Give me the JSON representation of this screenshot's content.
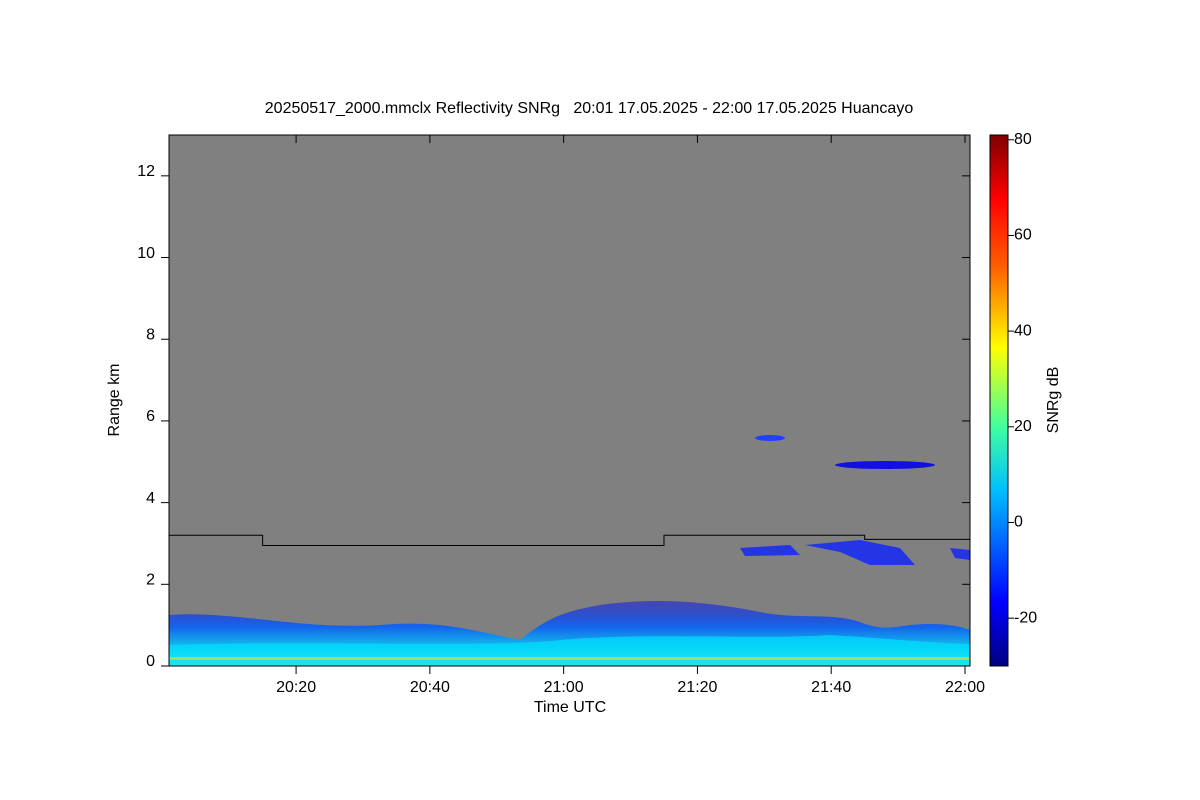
{
  "chart_data": {
    "type": "line",
    "title": "20250517_2000.mmclx Reflectivity SNRg   20:01 17.05.2025 - 22:00 17.05.2025 Huancayo",
    "x_label": "Time UTC",
    "y_label": "Range km",
    "colorbar_label": "SNRg dB",
    "x": [
      1201,
      1215,
      1215,
      1275,
      1275,
      1305,
      1305,
      1320.75
    ],
    "series": [
      {
        "color": "#000000",
        "values": [
          3.2,
          3.2,
          2.95,
          2.95,
          3.2,
          3.2,
          3.1,
          3.1
        ]
      }
    ],
    "xlim": [
      1201,
      1320.75
    ],
    "xticks": [
      {
        "value": 1220,
        "label": "20:20"
      },
      {
        "value": 1240,
        "label": "20:40"
      },
      {
        "value": 1260,
        "label": "21:00"
      },
      {
        "value": 1280,
        "label": "21:20"
      },
      {
        "value": 1300,
        "label": "21:40"
      },
      {
        "value": 1320,
        "label": "22:00"
      }
    ],
    "ylim": [
      0,
      13
    ],
    "yticks": [
      0,
      2,
      4,
      6,
      8,
      10,
      12
    ],
    "clim": [
      -30,
      81
    ],
    "cticks": [
      -20,
      0,
      20,
      40,
      60,
      80
    ],
    "background": "#808080"
  }
}
